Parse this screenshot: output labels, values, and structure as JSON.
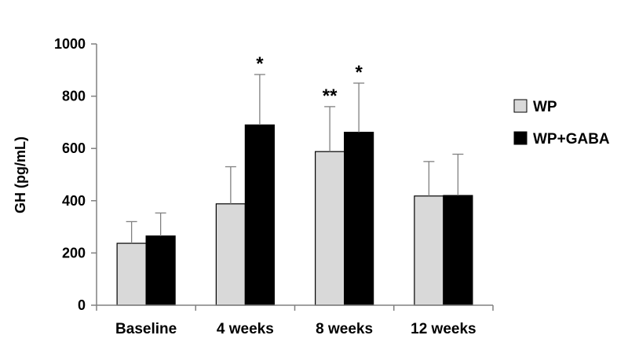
{
  "chart_data": {
    "type": "bar",
    "title": "",
    "xlabel": "",
    "ylabel": "GH (pg/mL)",
    "ylim": [
      0,
      1000
    ],
    "yticks": [
      0,
      200,
      400,
      600,
      800,
      1000
    ],
    "grid": false,
    "legend_position": "right",
    "categories": [
      "Baseline",
      "4 weeks",
      "8 weeks",
      "12 weeks"
    ],
    "series": [
      {
        "name": "WP",
        "color": "#d9d9d9",
        "values": [
          237,
          388,
          588,
          418
        ],
        "errors": [
          83,
          142,
          172,
          132
        ],
        "significance": [
          "",
          "",
          "**",
          ""
        ]
      },
      {
        "name": "WP+GABA",
        "color": "#000000",
        "values": [
          265,
          690,
          662,
          420
        ],
        "errors": [
          88,
          193,
          188,
          158
        ],
        "significance": [
          "",
          "*",
          "*",
          ""
        ]
      }
    ]
  }
}
